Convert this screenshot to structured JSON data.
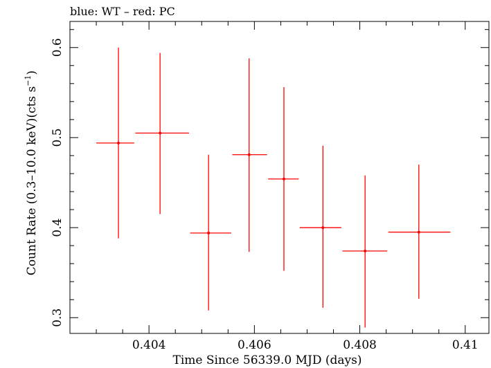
{
  "chart_data": {
    "type": "scatter",
    "title": "blue: WT – red: PC",
    "xlabel": "Time Since 56339.0 MJD (days)",
    "ylabel": "Count Rate (0.3–10.0 keV)(cts s⁻¹)",
    "ylabel_parts": {
      "pre": "Count Rate (0.3–10.0 keV)(cts s",
      "sup": "−1",
      "post": ")"
    },
    "xlim": [
      0.4025,
      0.41045
    ],
    "ylim": [
      0.2825,
      0.629
    ],
    "xticks": {
      "major": [
        0.404,
        0.406,
        0.408,
        0.41
      ],
      "labels": [
        "0.404",
        "0.406",
        "0.408",
        "0.41"
      ],
      "minor_step": 0.0005
    },
    "yticks": {
      "major": [
        0.3,
        0.4,
        0.5,
        0.6
      ],
      "labels": [
        "0.3",
        "0.4",
        "0.5",
        "0.6"
      ],
      "minor_step": 0.02
    },
    "grid": false,
    "series": [
      {
        "color": "#ff0000",
        "points": [
          {
            "x": 0.40342,
            "xlo": 0.403,
            "xhi": 0.40372,
            "y": 0.494,
            "ylo": 0.388,
            "yhi": 0.6
          },
          {
            "x": 0.40421,
            "xlo": 0.40374,
            "xhi": 0.40476,
            "y": 0.505,
            "ylo": 0.415,
            "yhi": 0.594
          },
          {
            "x": 0.40513,
            "xlo": 0.40478,
            "xhi": 0.40556,
            "y": 0.394,
            "ylo": 0.308,
            "yhi": 0.481
          },
          {
            "x": 0.4059,
            "xlo": 0.40558,
            "xhi": 0.40624,
            "y": 0.481,
            "ylo": 0.373,
            "yhi": 0.588
          },
          {
            "x": 0.40656,
            "xlo": 0.40626,
            "xhi": 0.40684,
            "y": 0.454,
            "ylo": 0.352,
            "yhi": 0.556
          },
          {
            "x": 0.4073,
            "xlo": 0.40686,
            "xhi": 0.40765,
            "y": 0.4,
            "ylo": 0.311,
            "yhi": 0.491
          },
          {
            "x": 0.4081,
            "xlo": 0.40767,
            "xhi": 0.40852,
            "y": 0.374,
            "ylo": 0.289,
            "yhi": 0.458
          },
          {
            "x": 0.40912,
            "xlo": 0.40854,
            "xhi": 0.40972,
            "y": 0.395,
            "ylo": 0.321,
            "yhi": 0.47
          }
        ]
      }
    ]
  }
}
